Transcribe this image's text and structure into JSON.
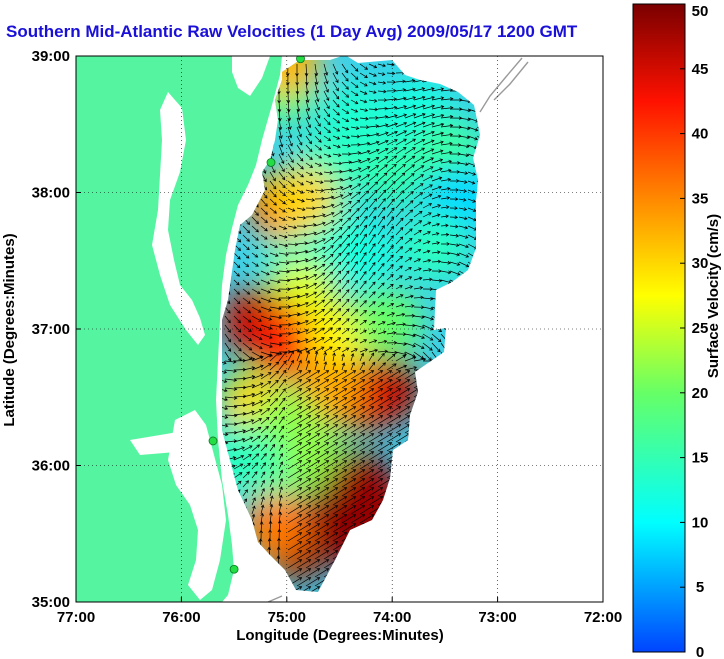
{
  "chart_data": {
    "type": "heatmap",
    "title": "Southern Mid-Atlantic Raw Velocities (1 Day Avg) 2009/05/17 1200 GMT",
    "xlabel": "Longitude (Degrees:Minutes)",
    "ylabel": "Latitude (Degrees:Minutes)",
    "xticks": [
      "77:00",
      "76:00",
      "75:00",
      "74:00",
      "73:00",
      "72:00"
    ],
    "yticks": [
      "39:00",
      "38:00",
      "37:00",
      "36:00",
      "35:00"
    ],
    "xlim": [
      -77,
      -72
    ],
    "ylim": [
      35,
      39
    ],
    "grid": true,
    "colorbar": {
      "label": "Surface Velocity (cm/s)",
      "min": 0,
      "max": 50,
      "ticks": [
        "0",
        "5",
        "10",
        "15",
        "20",
        "25",
        "30",
        "35",
        "40",
        "45",
        "50"
      ]
    },
    "colors": {
      "land": "#55f4a0",
      "water": "#ffffff",
      "coast_offshore": "#9a9a9a",
      "stations": "#22dd44",
      "title": "#1a10d8"
    },
    "stations": [
      {
        "lon": -74.87,
        "lat": 38.98
      },
      {
        "lon": -75.15,
        "lat": 38.22
      },
      {
        "lon": -75.7,
        "lat": 36.18
      },
      {
        "lon": -75.5,
        "lat": 35.24
      }
    ],
    "velocity_regions": [
      {
        "lon": -74.35,
        "lat": 38.55,
        "speed": 13
      },
      {
        "lon": -73.75,
        "lat": 38.6,
        "speed": 12
      },
      {
        "lon": -74.6,
        "lat": 38.2,
        "speed": 14
      },
      {
        "lon": -74.0,
        "lat": 38.15,
        "speed": 15
      },
      {
        "lon": -73.45,
        "lat": 38.3,
        "speed": 16
      },
      {
        "lon": -73.35,
        "lat": 37.95,
        "speed": 8
      },
      {
        "lon": -73.6,
        "lat": 37.6,
        "speed": 14
      },
      {
        "lon": -74.3,
        "lat": 37.55,
        "speed": 12
      },
      {
        "lon": -74.9,
        "lat": 37.55,
        "speed": 14
      },
      {
        "lon": -74.65,
        "lat": 37.8,
        "speed": 13
      },
      {
        "lon": -75.05,
        "lat": 38.75,
        "speed": 18
      },
      {
        "lon": -75.0,
        "lat": 38.95,
        "speed": 32
      },
      {
        "lon": -75.05,
        "lat": 37.9,
        "speed": 38
      },
      {
        "lon": -74.85,
        "lat": 37.95,
        "speed": 30
      },
      {
        "lon": -74.85,
        "lat": 37.25,
        "speed": 26
      },
      {
        "lon": -75.3,
        "lat": 37.05,
        "speed": 46
      },
      {
        "lon": -75.0,
        "lat": 36.9,
        "speed": 42
      },
      {
        "lon": -74.5,
        "lat": 36.95,
        "speed": 28
      },
      {
        "lon": -74.05,
        "lat": 37.05,
        "speed": 20
      },
      {
        "lon": -74.05,
        "lat": 36.55,
        "speed": 47
      },
      {
        "lon": -74.3,
        "lat": 36.5,
        "speed": 44
      },
      {
        "lon": -74.6,
        "lat": 36.55,
        "speed": 33
      },
      {
        "lon": -75.3,
        "lat": 36.45,
        "speed": 30
      },
      {
        "lon": -75.0,
        "lat": 36.3,
        "speed": 22
      },
      {
        "lon": -75.45,
        "lat": 36.05,
        "speed": 14
      },
      {
        "lon": -75.05,
        "lat": 35.95,
        "speed": 15
      },
      {
        "lon": -74.75,
        "lat": 36.05,
        "speed": 22
      },
      {
        "lon": -74.3,
        "lat": 35.85,
        "speed": 48
      },
      {
        "lon": -74.6,
        "lat": 35.6,
        "speed": 49
      },
      {
        "lon": -74.9,
        "lat": 35.4,
        "speed": 48
      },
      {
        "lon": -75.1,
        "lat": 35.55,
        "speed": 36
      },
      {
        "lon": -74.2,
        "lat": 35.4,
        "speed": 49
      },
      {
        "lon": -73.95,
        "lat": 35.6,
        "speed": 48
      }
    ]
  }
}
